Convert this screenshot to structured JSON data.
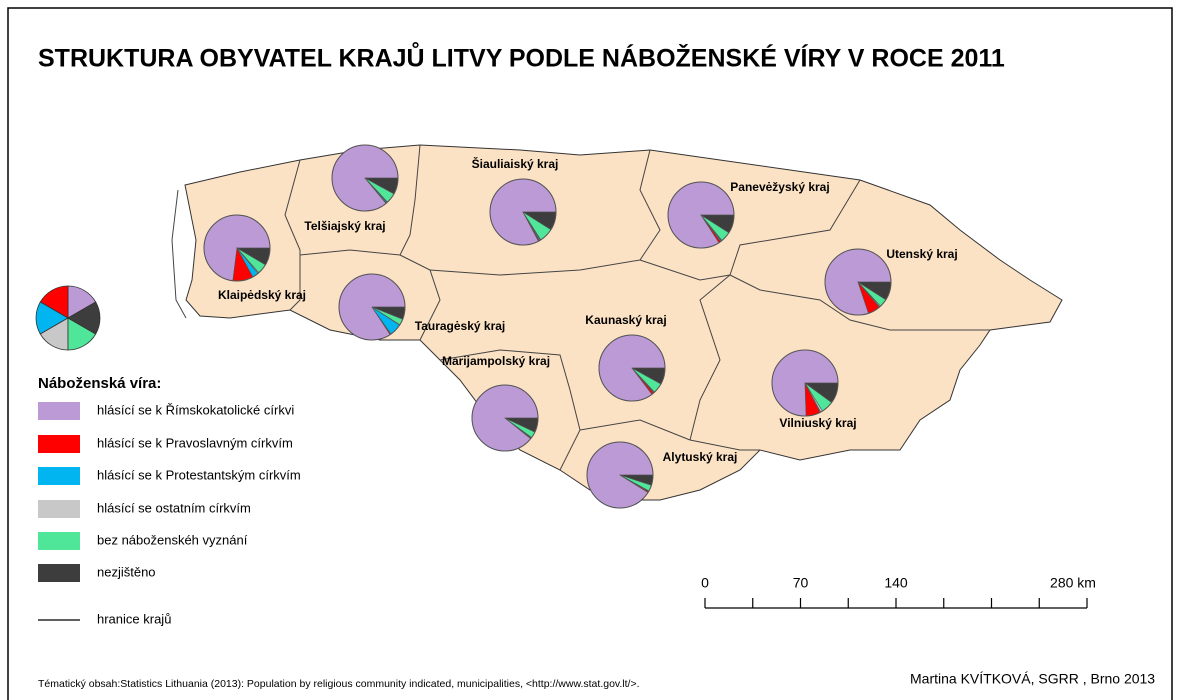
{
  "title": "STRUKTURA OBYVATEL KRAJŮ LITVY PODLE NÁBOŽENSKÉ VÍRY V ROCE 2011",
  "legend": {
    "title": "Náboženská víra:",
    "items": [
      {
        "name": "hlásící se k Římskokatolické církvi",
        "color": "#bc9ad6"
      },
      {
        "name": "hlásící se k Pravoslavným církvím",
        "color": "#ff0000"
      },
      {
        "name": "hlásící se k Protestantským církvím",
        "color": "#00b5f0"
      },
      {
        "name": "hlásící se ostatním církvím",
        "color": "#c8c8c8"
      },
      {
        "name": "bez náboženskéh vyznání",
        "color": "#4fe69a"
      },
      {
        "name": "nezjištěno",
        "color": "#3d3d3d"
      }
    ],
    "border_item": "hranice krajů"
  },
  "regions": [
    {
      "name": "Telšiajský kraj",
      "values": [
        86,
        0.3,
        0.5,
        0.2,
        5,
        8
      ]
    },
    {
      "name": "Šiauliaiský kraj",
      "values": [
        83,
        0.5,
        0.5,
        0.3,
        7,
        9
      ]
    },
    {
      "name": "Panevėžyský kraj",
      "values": [
        84,
        1,
        0.5,
        0.3,
        5,
        9
      ]
    },
    {
      "name": "Utenský kraj",
      "values": [
        80,
        6,
        0.3,
        0.5,
        4,
        9
      ]
    },
    {
      "name": "Klaipėdský kraj",
      "values": [
        73,
        10,
        3,
        0.5,
        5,
        8.5
      ]
    },
    {
      "name": "Tauragėský kraj",
      "values": [
        84,
        0.5,
        6,
        0.2,
        3,
        6
      ]
    },
    {
      "name": "Kaunaský kraj",
      "values": [
        85,
        1,
        0.3,
        0.3,
        5,
        8
      ]
    },
    {
      "name": "Marijampolský kraj",
      "values": [
        89,
        0.3,
        0.3,
        0.2,
        3,
        7
      ]
    },
    {
      "name": "Vilniuský kraj",
      "values": [
        75,
        7,
        0.3,
        1,
        6,
        10
      ]
    },
    {
      "name": "Alytuský kraj",
      "values": [
        91,
        0.5,
        0.2,
        0.2,
        3,
        5
      ]
    }
  ],
  "scale_bar": {
    "range": [
      0,
      280
    ],
    "ticks": [
      0,
      70,
      140,
      {
        "value": 280,
        "label": "280 km"
      }
    ],
    "minor_ticks": [
      35,
      105,
      175,
      210,
      245
    ]
  },
  "source": "Tématický obsah:Statistics Lithuania (2013): Population by religious community indicated, municipalities, <http://www.stat.gov.lt/>.",
  "author": "Martina KVÍTKOVÁ, SGRR , Brno 2013"
}
